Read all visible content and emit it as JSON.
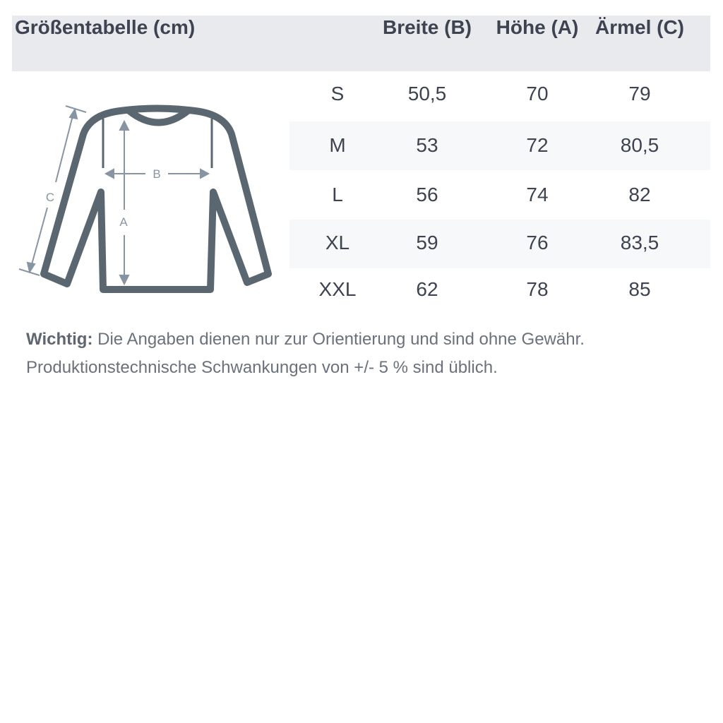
{
  "header": {
    "title": "Größentabelle (cm)",
    "columns": [
      "Breite (B)",
      "Höhe (A)",
      "Ärmel (C)"
    ]
  },
  "rows": [
    {
      "size": "S",
      "breite": "50,5",
      "hoehe": "70",
      "aermel": "79"
    },
    {
      "size": "M",
      "breite": "53",
      "hoehe": "72",
      "aermel": "80,5"
    },
    {
      "size": "L",
      "breite": "56",
      "hoehe": "74",
      "aermel": "82"
    },
    {
      "size": "XL",
      "breite": "59",
      "hoehe": "76",
      "aermel": "83,5"
    },
    {
      "size": "XXL",
      "breite": "62",
      "hoehe": "78",
      "aermel": "85"
    }
  ],
  "diagram": {
    "labels": {
      "a": "A",
      "b": "B",
      "c": "C"
    }
  },
  "note": {
    "label": "Wichtig:",
    "line1": " Die Angaben dienen nur zur Orientierung und sind ohne Gewähr.",
    "line2": "Produktionstechnische Schwankungen von +/- 5 % sind üblich."
  },
  "colors": {
    "header_bg": "#e9eaee",
    "stripe": "#f7f8fa",
    "outline": "#5a6770",
    "arrows": "#8795a3"
  }
}
